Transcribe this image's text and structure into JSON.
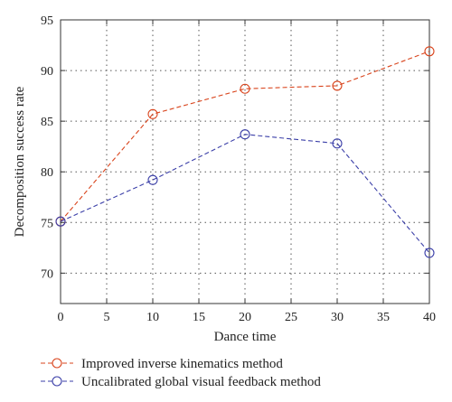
{
  "chart_data": {
    "type": "line",
    "xlabel": "Dance time",
    "ylabel": "Decomposition success rate",
    "xlim": [
      0,
      40
    ],
    "ylim": [
      67,
      95
    ],
    "xticks": [
      0,
      5,
      10,
      15,
      20,
      25,
      30,
      35,
      40
    ],
    "yticks": [
      70,
      75,
      80,
      85,
      90,
      95
    ],
    "grid": true,
    "legend_position": "bottom-left, below plot",
    "series": [
      {
        "name": "Improved inverse kinematics method",
        "color": "#d9441c",
        "marker": "open-circle",
        "line_style": "dashed",
        "x": [
          0,
          10,
          20,
          30,
          40
        ],
        "y": [
          75.1,
          85.7,
          88.2,
          88.5,
          91.9
        ]
      },
      {
        "name": "Uncalibrated global visual feedback method",
        "color": "#3b3fa8",
        "marker": "open-circle",
        "line_style": "dashed",
        "x": [
          0,
          10,
          20,
          30,
          40
        ],
        "y": [
          75.1,
          79.2,
          83.7,
          82.8,
          72.0
        ]
      }
    ]
  }
}
